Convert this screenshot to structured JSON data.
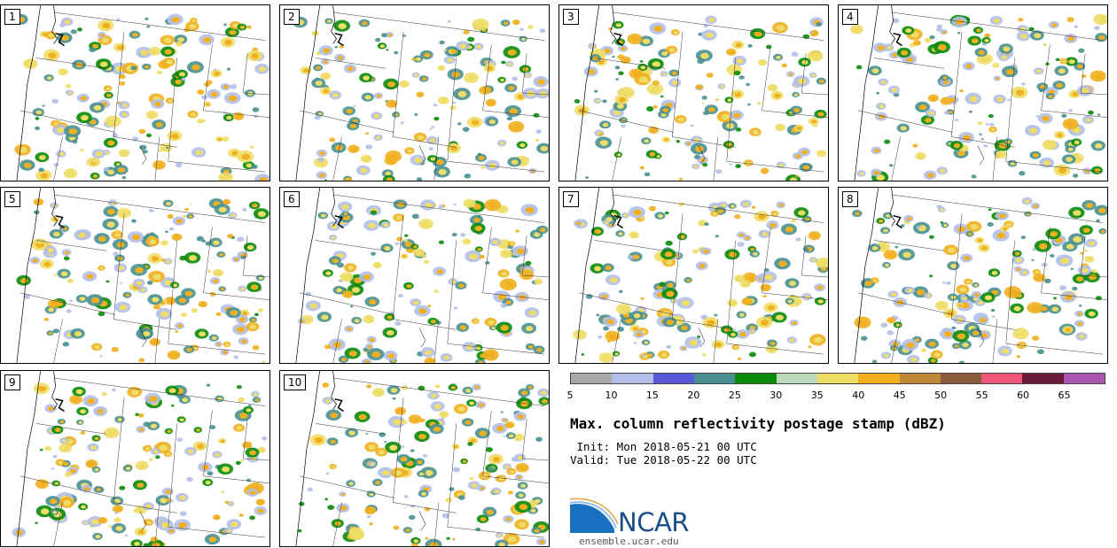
{
  "panels": [
    "1",
    "2",
    "3",
    "4",
    "5",
    "6",
    "7",
    "8",
    "9",
    "10"
  ],
  "legend": {
    "colors": [
      "#a9a9a9",
      "#b3bfe8",
      "#5a5ad8",
      "#4a9090",
      "#0a8a0a",
      "#bcd9bc",
      "#eedd66",
      "#f0b020",
      "#c08838",
      "#8b5a3c",
      "#ee5577",
      "#6a1a38",
      "#a855b0"
    ],
    "ticks": [
      "5",
      "10",
      "15",
      "20",
      "25",
      "30",
      "35",
      "40",
      "45",
      "50",
      "55",
      "60",
      "65"
    ]
  },
  "title": "Max. column reflectivity postage stamp (dBZ)",
  "init": " Init: Mon 2018-05-21 00 UTC",
  "valid": "Valid: Tue 2018-05-22 00 UTC",
  "logo": {
    "name": "NCAR",
    "url": "ensemble.ucar.edu",
    "blue": "#1a70c0",
    "text_color": "#1a4e8a"
  }
}
